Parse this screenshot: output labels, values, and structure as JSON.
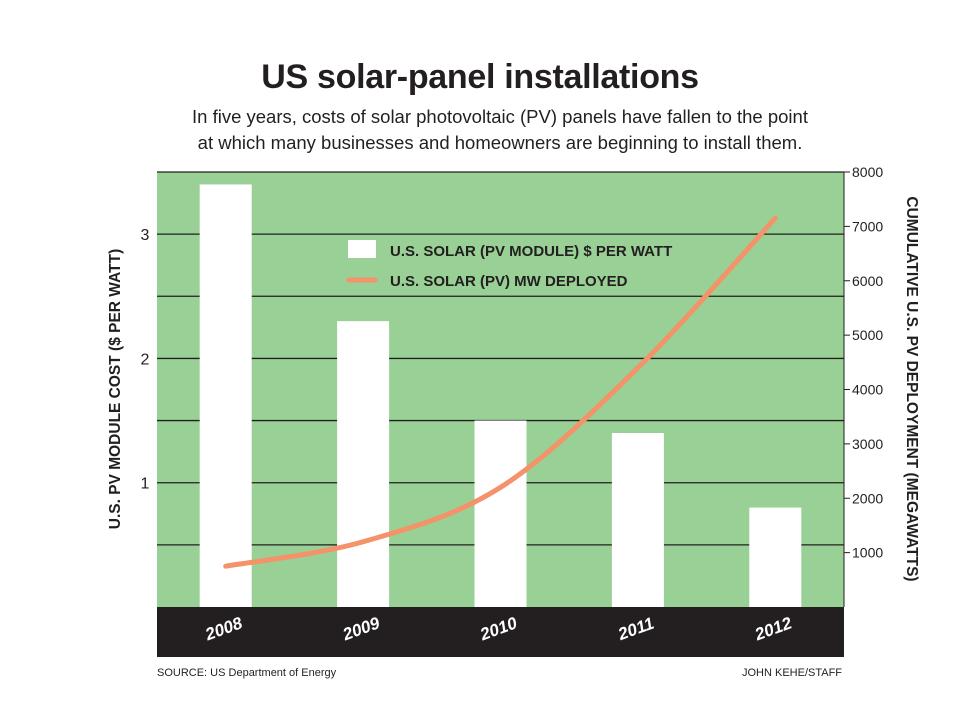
{
  "header": {
    "title": "US solar-panel installations",
    "subtitle_line1": "In five years, costs of solar photovoltaic (PV) panels have fallen to the point",
    "subtitle_line2": "at which many businesses and homeowners are beginning to install them."
  },
  "footer": {
    "source": "SOURCE: US Department of Energy",
    "credit": "JOHN KEHE/STAFF"
  },
  "colors": {
    "plot_background": "#99d095",
    "bars": "#ffffff",
    "line": "#f4926a",
    "category_band": "#231f20",
    "gridline": "#231f20"
  },
  "chart_data": {
    "type": "bar",
    "categories": [
      "2008",
      "2009",
      "2010",
      "2011",
      "2012"
    ],
    "series": [
      {
        "name": "U.S. SOLAR (PV MODULE) $ PER WATT",
        "type": "bar",
        "axis": "left",
        "values": [
          3.4,
          2.3,
          1.5,
          1.4,
          0.8
        ]
      },
      {
        "name": "U.S. SOLAR (PV) MW DEPLOYED",
        "type": "line",
        "axis": "right",
        "values": [
          750,
          1200,
          2200,
          4400,
          7150
        ]
      }
    ],
    "ylabel_left": "U.S. PV MODULE COST ($ PER WATT)",
    "ylabel_right": "CUMULATIVE U.S. PV DEPLOYMENT (MEGAWATTS)",
    "yticks_left": [
      "1",
      "2",
      "3"
    ],
    "yticks_right": [
      "1000",
      "2000",
      "3000",
      "4000",
      "5000",
      "6000",
      "7000",
      "8000"
    ],
    "ylim_left": [
      0,
      3.5
    ],
    "ylim_right": [
      0,
      8000
    ],
    "grid": true,
    "legend_position": "top-center"
  }
}
